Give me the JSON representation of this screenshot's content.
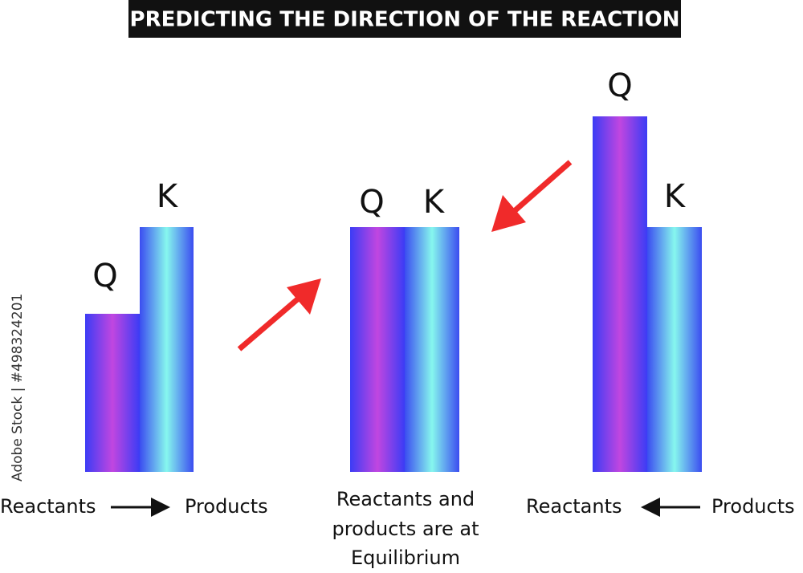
{
  "title": "PREDICTING THE DIRECTION OF THE REACTION",
  "panels": [
    {
      "q_label": "Q",
      "k_label": "K",
      "caption": {
        "left": "Reactants",
        "right": "Products"
      }
    },
    {
      "q_label": "Q",
      "k_label": "K",
      "caption_lines": [
        "Reactants and",
        "products are at",
        "Equilibrium"
      ]
    },
    {
      "q_label": "Q",
      "k_label": "K",
      "caption": {
        "left": "Reactants",
        "right": "Products"
      }
    }
  ],
  "watermark": "Adobe Stock | #498324201"
}
